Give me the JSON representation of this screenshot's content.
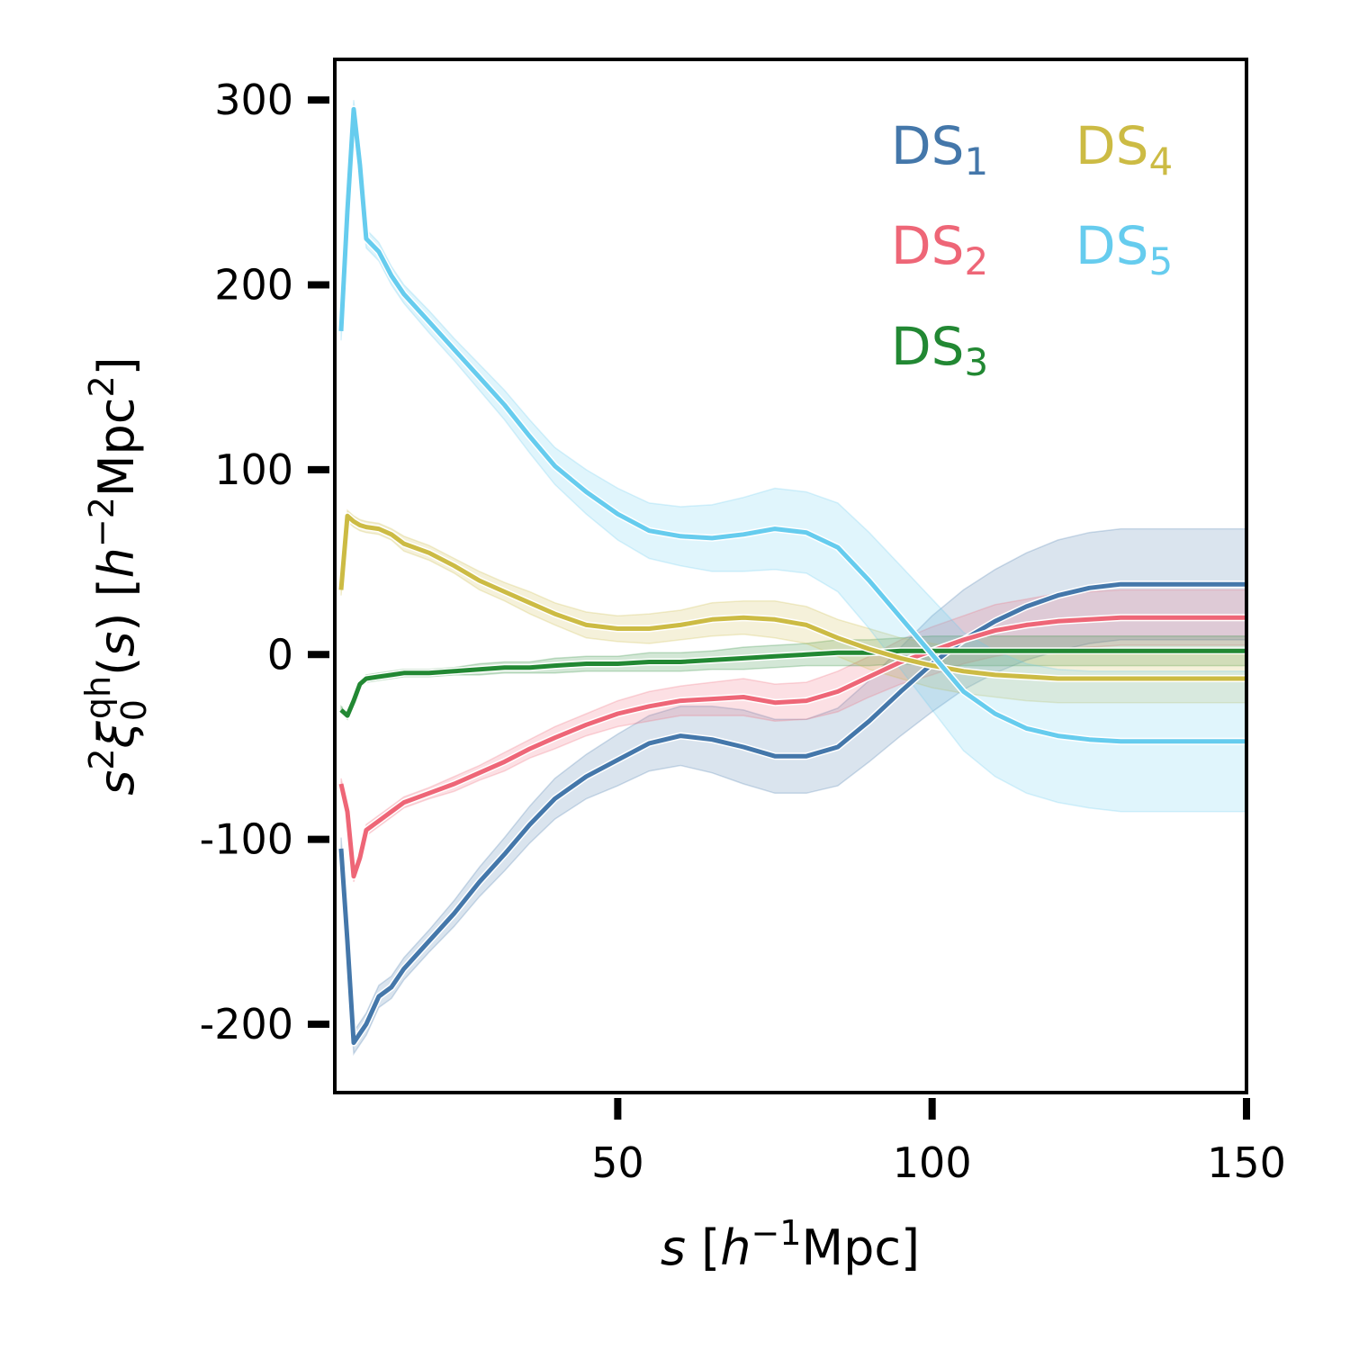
{
  "chart_data": {
    "type": "line",
    "xlabel": "s [h^-1 Mpc]",
    "ylabel": "s^2 ξ_0^qh(s) [h^-2 Mpc^2]",
    "xlim": [
      5,
      150
    ],
    "ylim": [
      -237,
      322
    ],
    "xticks": [
      50,
      100,
      150
    ],
    "yticks": [
      300,
      200,
      100,
      0,
      -100,
      -200
    ],
    "xtick_labels": [
      "50",
      "100",
      "150"
    ],
    "ytick_labels": [
      "300",
      "200",
      "100",
      "0",
      "-100",
      "-200"
    ],
    "grid": false,
    "legend_placement": "top-right",
    "x": [
      6,
      7,
      8,
      9,
      10,
      12,
      14,
      16,
      20,
      24,
      28,
      32,
      36,
      40,
      45,
      50,
      55,
      60,
      65,
      70,
      75,
      80,
      85,
      90,
      95,
      100,
      105,
      110,
      115,
      120,
      125,
      130,
      135,
      140,
      145,
      150
    ],
    "series": [
      {
        "name": "DS",
        "subscript": "1",
        "color": "#4477AA",
        "values": [
          -105,
          -155,
          -210,
          -205,
          -200,
          -185,
          -180,
          -170,
          -155,
          -140,
          -123,
          -108,
          -92,
          -78,
          -66,
          -57,
          -48,
          -44,
          -46,
          -50,
          -55,
          -55,
          -50,
          -36,
          -20,
          -5,
          8,
          18,
          26,
          32,
          36,
          38,
          38,
          38,
          38,
          38
        ],
        "band": [
          6,
          6,
          6,
          6,
          6,
          6,
          6,
          6,
          6,
          7,
          8,
          9,
          10,
          11,
          12,
          14,
          15,
          16,
          18,
          20,
          20,
          20,
          21,
          22,
          24,
          26,
          27,
          28,
          29,
          30,
          30,
          30,
          30,
          30,
          30,
          30
        ]
      },
      {
        "name": "DS",
        "subscript": "2",
        "color": "#EE6677",
        "values": [
          -70,
          -85,
          -120,
          -110,
          -95,
          -90,
          -85,
          -80,
          -75,
          -70,
          -64,
          -58,
          -51,
          -45,
          -38,
          -32,
          -28,
          -25,
          -24,
          -23,
          -26,
          -25,
          -20,
          -12,
          -4,
          2,
          8,
          13,
          16,
          18,
          19,
          20,
          20,
          20,
          20,
          20
        ],
        "band": [
          3,
          3,
          3,
          3,
          3,
          3,
          3,
          3,
          3,
          4,
          4,
          5,
          5,
          6,
          6,
          7,
          8,
          8,
          9,
          10,
          10,
          10,
          11,
          11,
          12,
          13,
          13,
          14,
          14,
          15,
          15,
          15,
          15,
          15,
          15,
          15
        ]
      },
      {
        "name": "DS",
        "subscript": "3",
        "color": "#228833",
        "values": [
          -30,
          -33,
          -25,
          -16,
          -13,
          -12,
          -11,
          -10,
          -10,
          -9,
          -8,
          -7,
          -7,
          -6,
          -5,
          -5,
          -4,
          -4,
          -3,
          -2,
          -1,
          0,
          1,
          1,
          2,
          2,
          2,
          2,
          2,
          2,
          2,
          2,
          2,
          2,
          2,
          2
        ],
        "band": [
          2,
          2,
          2,
          2,
          2,
          2,
          2,
          2,
          2,
          2,
          3,
          3,
          3,
          4,
          4,
          4,
          5,
          5,
          5,
          6,
          6,
          6,
          7,
          7,
          7,
          8,
          8,
          8,
          8,
          8,
          8,
          8,
          8,
          8,
          8,
          8
        ]
      },
      {
        "name": "DS",
        "subscript": "4",
        "color": "#CCBB44",
        "values": [
          35,
          75,
          72,
          70,
          69,
          68,
          65,
          60,
          55,
          48,
          40,
          34,
          28,
          22,
          16,
          14,
          14,
          16,
          19,
          20,
          19,
          16,
          9,
          3,
          -2,
          -6,
          -9,
          -11,
          -12,
          -13,
          -13,
          -13,
          -13,
          -13,
          -13,
          -13
        ],
        "band": [
          3,
          3,
          3,
          3,
          3,
          3,
          3,
          4,
          4,
          4,
          5,
          5,
          6,
          6,
          7,
          7,
          8,
          8,
          9,
          9,
          10,
          10,
          10,
          11,
          11,
          12,
          12,
          12,
          13,
          13,
          13,
          13,
          13,
          13,
          13,
          13
        ]
      },
      {
        "name": "DS",
        "subscript": "5",
        "color": "#66CCEE",
        "values": [
          175,
          240,
          295,
          265,
          225,
          218,
          205,
          195,
          180,
          165,
          150,
          135,
          118,
          102,
          88,
          76,
          67,
          64,
          63,
          65,
          68,
          66,
          58,
          40,
          20,
          0,
          -20,
          -32,
          -40,
          -44,
          -46,
          -47,
          -47,
          -47,
          -47,
          -47
        ],
        "band": [
          5,
          5,
          5,
          5,
          5,
          5,
          5,
          5,
          6,
          6,
          7,
          8,
          9,
          10,
          12,
          14,
          15,
          16,
          18,
          20,
          22,
          22,
          24,
          26,
          28,
          30,
          32,
          34,
          35,
          36,
          37,
          38,
          38,
          38,
          38,
          38
        ]
      }
    ]
  }
}
